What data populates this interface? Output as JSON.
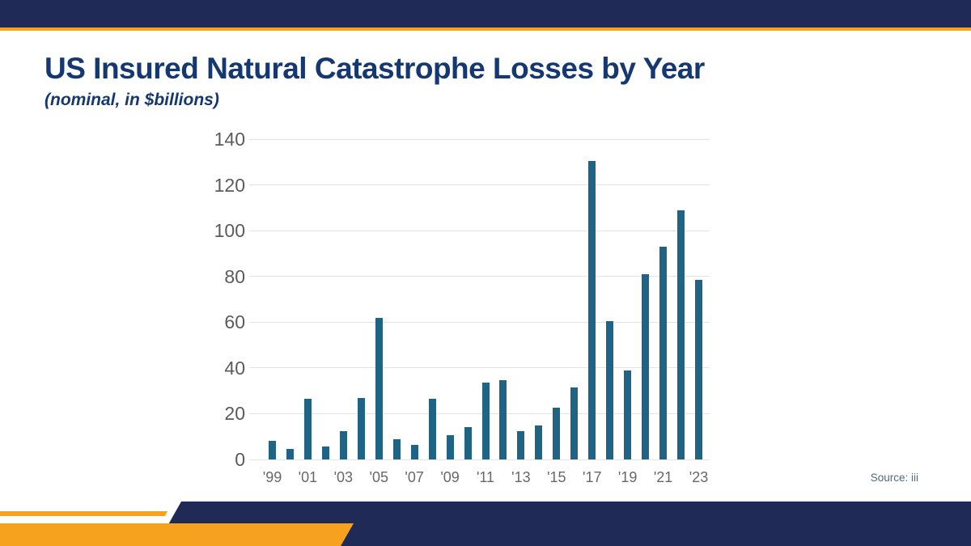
{
  "page": {
    "title": "US Insured Natural Catastrophe Losses by Year",
    "subtitle": "(nominal, in $billions)",
    "source": "Source: iii"
  },
  "colors": {
    "band_navy": "#1F2B56",
    "title_navy": "#14386F",
    "accent_orange": "#F6A21E",
    "bar_teal": "#1F6385",
    "gridline_gray": "#E3E3E3",
    "axis_text_gray": "#5B5B5B"
  },
  "chart_data": {
    "type": "bar",
    "title": "US Insured Natural Catastrophe Losses by Year",
    "subtitle": "(nominal, in $billions)",
    "xlabel": "",
    "ylabel": "",
    "ylim": [
      0,
      140
    ],
    "ytick_step": 20,
    "ytick_labels": [
      "0",
      "20",
      "40",
      "60",
      "80",
      "100",
      "120",
      "140"
    ],
    "grid": true,
    "legend_position": "none",
    "categories": [
      "'99",
      "'00",
      "'01",
      "'02",
      "'03",
      "'04",
      "'05",
      "'06",
      "'07",
      "'08",
      "'09",
      "'10",
      "'11",
      "'12",
      "'13",
      "'14",
      "'15",
      "'16",
      "'17",
      "'18",
      "'19",
      "'20",
      "'21",
      "'22",
      "'23"
    ],
    "x_tick_labels_shown": [
      "'99",
      "'01",
      "'03",
      "'05",
      "'07",
      "'09",
      "'11",
      "'13",
      "'15",
      "'17",
      "'19",
      "'21",
      "'23"
    ],
    "values": [
      8.3,
      4.5,
      26.5,
      5.5,
      12.5,
      27,
      62,
      9,
      6.5,
      26.5,
      10.5,
      14,
      33.5,
      34.5,
      12.5,
      15,
      22.5,
      31.5,
      130.5,
      60.5,
      39,
      81,
      93,
      109,
      78.5
    ],
    "source": "Source: iii"
  }
}
